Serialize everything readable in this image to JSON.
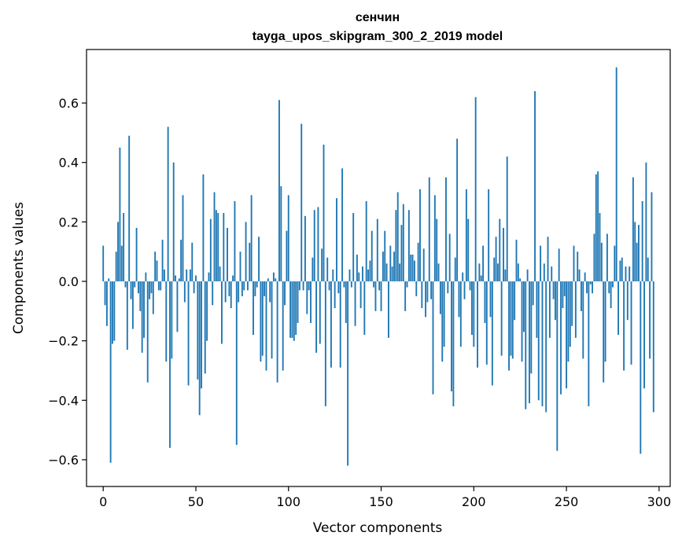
{
  "chart_data": {
    "type": "bar",
    "title": "сенчин",
    "subtitle": "tayga_upos_skipgram_300_2_2019 model",
    "xlabel": "Vector components",
    "ylabel": "Components values",
    "xlim": [
      -9,
      306
    ],
    "ylim": [
      -0.69,
      0.78
    ],
    "xticks": [
      0,
      50,
      100,
      150,
      200,
      250,
      300
    ],
    "xtick_labels": [
      "0",
      "50",
      "100",
      "150",
      "200",
      "250",
      "300"
    ],
    "yticks": [
      -0.6,
      -0.4,
      -0.2,
      0.0,
      0.2,
      0.4,
      0.6
    ],
    "ytick_labels": [
      "−0.6",
      "−0.4",
      "−0.2",
      "0.0",
      "0.2",
      "0.4",
      "0.6"
    ],
    "bar_color": "#1f77b4",
    "x": "0..299",
    "values": [
      0.12,
      -0.08,
      -0.15,
      0.01,
      -0.61,
      -0.21,
      -0.2,
      0.1,
      0.2,
      0.45,
      0.12,
      0.23,
      -0.02,
      -0.23,
      0.49,
      -0.06,
      -0.16,
      -0.02,
      0.18,
      -0.04,
      -0.1,
      -0.24,
      -0.19,
      0.03,
      -0.34,
      -0.06,
      -0.04,
      -0.11,
      0.1,
      0.07,
      -0.03,
      -0.03,
      0.14,
      0.04,
      -0.27,
      0.52,
      -0.56,
      -0.26,
      0.4,
      0.02,
      -0.17,
      0.01,
      0.14,
      0.29,
      -0.07,
      0.04,
      -0.35,
      0.04,
      0.13,
      -0.04,
      0.02,
      -0.33,
      -0.45,
      -0.36,
      0.36,
      -0.31,
      -0.2,
      0.03,
      0.21,
      -0.08,
      0.3,
      0.24,
      0.23,
      0.05,
      -0.21,
      0.23,
      -0.07,
      0.18,
      -0.05,
      -0.09,
      0.02,
      0.27,
      -0.55,
      -0.07,
      0.1,
      -0.05,
      -0.03,
      0.2,
      -0.03,
      0.13,
      0.29,
      -0.18,
      -0.05,
      -0.02,
      0.15,
      -0.27,
      -0.25,
      -0.05,
      -0.3,
      0.01,
      -0.07,
      -0.26,
      0.03,
      0.01,
      -0.34,
      0.61,
      0.32,
      -0.3,
      -0.08,
      0.17,
      0.29,
      -0.19,
      -0.19,
      -0.2,
      -0.18,
      -0.14,
      -0.03,
      0.53,
      -0.03,
      0.22,
      -0.11,
      -0.03,
      -0.14,
      0.08,
      0.24,
      -0.24,
      0.25,
      -0.21,
      0.11,
      0.46,
      -0.42,
      0.08,
      -0.03,
      -0.29,
      0.04,
      -0.09,
      0.28,
      -0.04,
      -0.29,
      0.38,
      -0.02,
      -0.14,
      -0.62,
      0.04,
      -0.02,
      0.23,
      -0.15,
      0.09,
      0.03,
      -0.09,
      0.05,
      -0.18,
      0.27,
      0.04,
      0.07,
      0.17,
      -0.02,
      -0.1,
      0.21,
      -0.03,
      -0.1,
      0.1,
      0.17,
      0.06,
      -0.19,
      0.12,
      0.05,
      0.1,
      0.24,
      0.3,
      0.06,
      0.19,
      0.26,
      -0.1,
      -0.02,
      0.24,
      0.09,
      0.09,
      0.07,
      -0.05,
      0.13,
      0.31,
      -0.09,
      0.11,
      -0.12,
      -0.07,
      0.35,
      -0.06,
      -0.38,
      0.29,
      0.21,
      0.06,
      -0.11,
      -0.27,
      -0.22,
      0.35,
      -0.04,
      0.16,
      -0.37,
      -0.42,
      0.08,
      0.48,
      -0.12,
      -0.22,
      0.03,
      -0.06,
      0.31,
      0.21,
      -0.03,
      -0.18,
      -0.22,
      0.62,
      -0.29,
      0.06,
      0.02,
      0.12,
      -0.14,
      -0.28,
      0.31,
      -0.12,
      -0.35,
      0.08,
      0.15,
      0.06,
      0.21,
      -0.25,
      0.18,
      0.04,
      0.42,
      -0.3,
      -0.25,
      -0.26,
      -0.13,
      0.14,
      0.06,
      0.01,
      -0.27,
      -0.17,
      -0.43,
      0.04,
      -0.41,
      -0.31,
      -0.08,
      0.64,
      -0.19,
      -0.4,
      0.12,
      -0.42,
      0.06,
      -0.44,
      0.15,
      -0.19,
      0.05,
      -0.06,
      -0.13,
      -0.57,
      0.11,
      -0.38,
      -0.09,
      -0.05,
      -0.36,
      -0.27,
      -0.22,
      -0.15,
      0.12,
      -0.19,
      0.1,
      0.04,
      -0.1,
      -0.26,
      0.03,
      -0.04,
      -0.42,
      -0.01,
      -0.04,
      0.16,
      0.36,
      0.37,
      0.23,
      0.13,
      -0.34,
      -0.27,
      0.16,
      -0.04,
      -0.09,
      -0.02,
      0.12,
      0.72,
      -0.18,
      0.07,
      0.08,
      -0.3,
      0.05,
      -0.13,
      0.05,
      -0.28,
      0.35,
      0.2,
      0.13,
      0.19,
      -0.58,
      0.27,
      -0.36,
      0.4,
      0.08,
      -0.26,
      0.3,
      -0.44
    ]
  }
}
